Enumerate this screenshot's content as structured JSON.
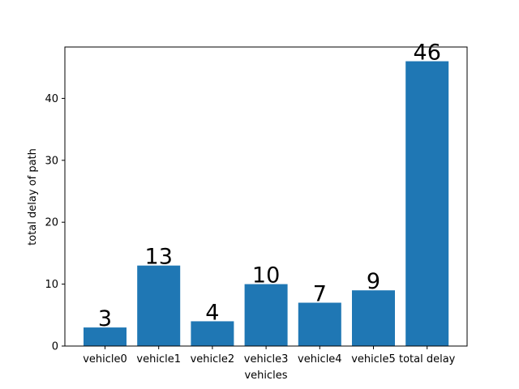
{
  "chart_data": {
    "type": "bar",
    "title": "",
    "xlabel": "vehicles",
    "ylabel": "total delay of path",
    "categories": [
      "vehicle0",
      "vehicle1",
      "vehicle2",
      "vehicle3",
      "vehicle4",
      "vehicle5",
      "total delay"
    ],
    "values": [
      3,
      13,
      4,
      10,
      7,
      9,
      46
    ],
    "data_labels": [
      "3",
      "13",
      "4",
      "10",
      "7",
      "9",
      "46"
    ],
    "yticks": [
      0,
      10,
      20,
      30,
      40
    ],
    "ylim": [
      0,
      48.3
    ],
    "grid": false,
    "bar_color": "#1f77b4"
  }
}
